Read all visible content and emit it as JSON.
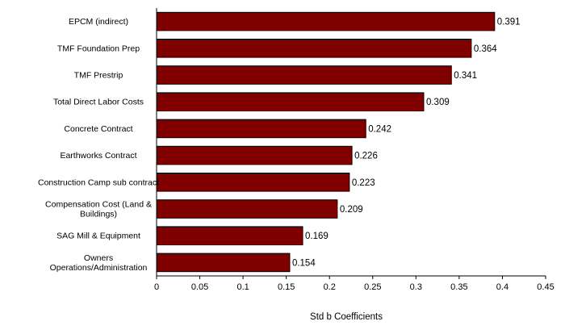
{
  "chart_data": {
    "type": "bar",
    "orientation": "horizontal",
    "categories": [
      [
        "EPCM (indirect)"
      ],
      [
        "TMF Foundation Prep"
      ],
      [
        "TMF Prestrip"
      ],
      [
        "Total Direct Labor Costs"
      ],
      [
        "Concrete Contract"
      ],
      [
        "Earthworks Contract"
      ],
      [
        "Construction Camp sub contract"
      ],
      [
        "Compensation Cost (Land &",
        "Buildings)"
      ],
      [
        "SAG Mill & Equipment"
      ],
      [
        "Owners",
        "Operations/Administration"
      ]
    ],
    "values": [
      0.391,
      0.364,
      0.341,
      0.309,
      0.242,
      0.226,
      0.223,
      0.209,
      0.169,
      0.154
    ],
    "data_labels": [
      "0.391",
      "0.364",
      "0.341",
      "0.309",
      "0.242",
      "0.226",
      "0.223",
      "0.209",
      "0.169",
      "0.154"
    ],
    "xlabel": "Std b Coefficients",
    "xlim": [
      0,
      0.45
    ],
    "xticks": [
      0,
      0.05,
      0.1,
      0.15,
      0.2,
      0.25,
      0.3,
      0.35,
      0.4,
      0.45
    ],
    "xtick_labels": [
      "0",
      "0.05",
      "0.1",
      "0.15",
      "0.2",
      "0.25",
      "0.3",
      "0.35",
      "0.4",
      "0.45"
    ],
    "grid": false,
    "bar_color": "#800000"
  }
}
